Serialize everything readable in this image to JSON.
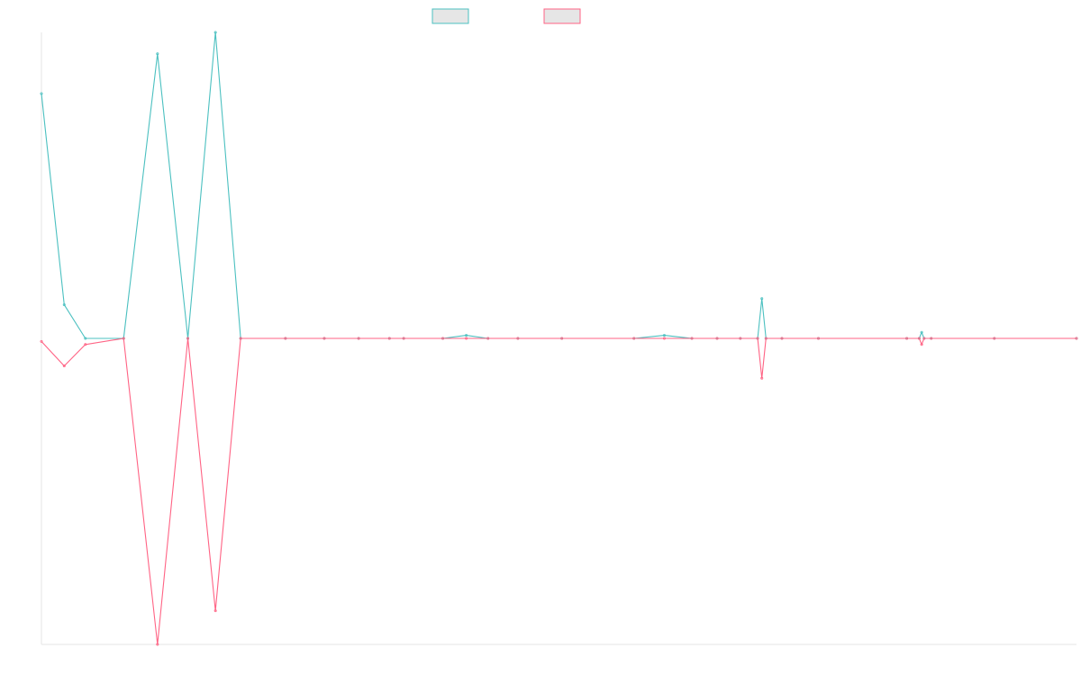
{
  "chart_data": {
    "type": "line",
    "title": "",
    "xlabel": "",
    "ylabel": "",
    "legend_position": "top-center",
    "grid": false,
    "ylim": [
      -100,
      100
    ],
    "x": [
      0,
      0.5,
      1,
      2,
      3,
      4,
      5,
      6,
      8,
      10,
      12,
      14,
      15,
      18,
      20,
      22,
      25,
      30,
      40,
      45,
      50,
      55,
      60,
      64,
      65,
      66,
      70,
      80,
      110,
      115,
      116,
      117,
      120,
      150,
      200
    ],
    "series": [
      {
        "name": "",
        "color": "#4bc0c0",
        "values": [
          80,
          11,
          0,
          0,
          93,
          0,
          100,
          0,
          0,
          0,
          0,
          0,
          0,
          0,
          1,
          0,
          0,
          0,
          0,
          1,
          0,
          0,
          0,
          0,
          13,
          0,
          0,
          0,
          0,
          0,
          2,
          0,
          0,
          0,
          0
        ]
      },
      {
        "name": "",
        "color": "#ff6384",
        "values": [
          -1,
          -9,
          -2,
          0,
          -100,
          0,
          -89,
          0,
          0,
          0,
          0,
          0,
          0,
          0,
          0,
          0,
          0,
          0,
          0,
          0,
          0,
          0,
          0,
          0,
          -13,
          0,
          0,
          0,
          0,
          0,
          -2,
          0,
          0,
          0,
          0
        ]
      }
    ]
  }
}
